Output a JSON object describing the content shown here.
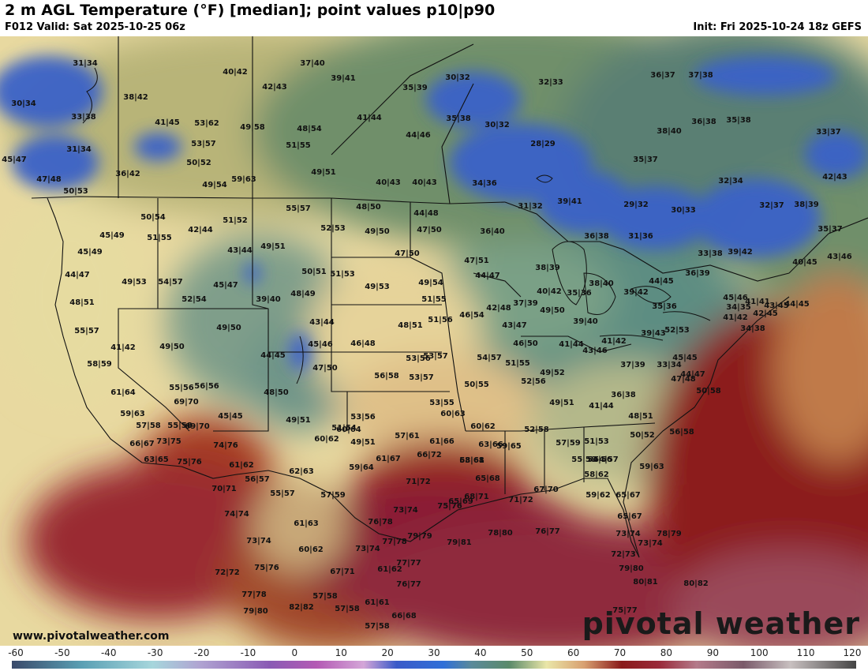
{
  "header": {
    "title": "2 m AGL Temperature (°F) [median]; point values p10|p90",
    "valid": "F012 Valid: Sat 2025-10-25 06z",
    "init": "Init: Fri 2025-10-24 18z GEFS"
  },
  "watermark": {
    "site": "www.pivotalweather.com",
    "brand": "pivotal weather"
  },
  "colorbar": {
    "ticks": [
      "-60",
      "-50",
      "-40",
      "-30",
      "-20",
      "-10",
      "0",
      "10",
      "20",
      "30",
      "40",
      "50",
      "60",
      "70",
      "80",
      "90",
      "100",
      "110",
      "120"
    ],
    "range": [
      -60,
      120
    ],
    "stops": [
      {
        "t": -60,
        "c": "#3a4a6a"
      },
      {
        "t": -45,
        "c": "#5aa0b4"
      },
      {
        "t": -30,
        "c": "#a6d6dc"
      },
      {
        "t": -20,
        "c": "#b0a4d2"
      },
      {
        "t": -5,
        "c": "#8a5ab4"
      },
      {
        "t": 5,
        "c": "#b45ab4"
      },
      {
        "t": 15,
        "c": "#d4a6d8"
      },
      {
        "t": 22,
        "c": "#3a5ac8"
      },
      {
        "t": 32,
        "c": "#2f6fd8"
      },
      {
        "t": 38,
        "c": "#5a8a9a"
      },
      {
        "t": 46,
        "c": "#5a8a6a"
      },
      {
        "t": 54,
        "c": "#eae6a8"
      },
      {
        "t": 62,
        "c": "#d8a070"
      },
      {
        "t": 70,
        "c": "#8a1a1a"
      },
      {
        "t": 78,
        "c": "#9a2a3a"
      },
      {
        "t": 86,
        "c": "#b47a8a"
      },
      {
        "t": 96,
        "c": "#7a5a6a"
      },
      {
        "t": 106,
        "c": "#c8c0c0"
      },
      {
        "t": 120,
        "c": "#444444"
      }
    ]
  },
  "point_values": [
    "31|34",
    "30|34",
    "33|38",
    "31|34",
    "45|47",
    "47|48",
    "50|53",
    "38|42",
    "41|45",
    "36|42",
    "53|62",
    "53|57",
    "50|52",
    "49|54",
    "49|58",
    "48|54",
    "51|55",
    "59|63",
    "40|42",
    "37|40",
    "42|43",
    "39|41",
    "35|39",
    "30|32",
    "41|44",
    "44|46",
    "35|38",
    "30|32",
    "28|29",
    "32|33",
    "36|37",
    "37|38",
    "38|40",
    "36|38",
    "35|38",
    "33|37",
    "35|37",
    "32|34",
    "42|43",
    "29|32",
    "30|33",
    "32|37",
    "38|39",
    "49|51",
    "40|43",
    "40|43",
    "34|36",
    "31|32",
    "39|41",
    "55|57",
    "48|50",
    "44|48",
    "52|53",
    "49|50",
    "47|50",
    "50|54",
    "51|55",
    "42|44",
    "51|52",
    "45|49",
    "45|49",
    "44|47",
    "49|53",
    "54|57",
    "43|44",
    "49|51",
    "45|47",
    "52|54",
    "48|51",
    "39|40",
    "48|49",
    "50|51",
    "51|53",
    "49|53",
    "47|50",
    "47|51",
    "44|47",
    "36|40",
    "36|38",
    "31|36",
    "35|37",
    "33|38",
    "39|42",
    "40|45",
    "43|46",
    "38|39",
    "40|42",
    "35|36",
    "38|40",
    "39|42",
    "44|45",
    "36|39",
    "45|46",
    "41|41",
    "42|45",
    "34|38",
    "34|35",
    "35|36",
    "52|53",
    "41|42",
    "43|45",
    "44|45",
    "49|54",
    "51|55",
    "46|54",
    "42|48",
    "37|39",
    "49|50",
    "39|40",
    "43|47",
    "55|57",
    "41|42",
    "49|50",
    "48|51",
    "51|56",
    "46|50",
    "41|44",
    "41|42",
    "39|43",
    "58|59",
    "49|50",
    "43|44",
    "45|46",
    "46|48",
    "53|56",
    "53|57",
    "54|57",
    "51|55",
    "43|46",
    "37|39",
    "33|34",
    "47|48",
    "44|45",
    "47|50",
    "56|58",
    "53|57",
    "49|52",
    "45|45",
    "44|47",
    "55|56",
    "61|64",
    "56|56",
    "48|50",
    "50|55",
    "52|56",
    "36|38",
    "50|58",
    "59|63",
    "69|70",
    "55|58",
    "60|62",
    "49|51",
    "41|44",
    "57|58",
    "66|67",
    "69|70",
    "45|45",
    "49|51",
    "53|56",
    "53|55",
    "60|63",
    "48|51",
    "56|58",
    "73|75",
    "74|76",
    "51|54",
    "60|64",
    "49|51",
    "52|58",
    "57|59",
    "51|53",
    "50|52",
    "63|65",
    "75|76",
    "61|62",
    "60|62",
    "57|61",
    "61|66",
    "59|65",
    "63|66",
    "54|57",
    "58|61",
    "54|56",
    "56|57",
    "62|63",
    "61|67",
    "66|72",
    "63|68",
    "55|58",
    "59|63",
    "70|71",
    "55|57",
    "59|64",
    "71|72",
    "65|69",
    "65|68",
    "58|62",
    "67|70",
    "59|62",
    "65|67",
    "57|59",
    "73|74",
    "75|76",
    "68|71",
    "71|72",
    "74|74",
    "61|63",
    "76|78",
    "65|67",
    "78|80",
    "76|77",
    "73|74",
    "73|74",
    "77|78",
    "79|79",
    "79|81",
    "60|62",
    "73|74",
    "72|73",
    "73|74",
    "78|79",
    "75|76",
    "67|71",
    "61|62",
    "77|77",
    "79|80",
    "76|77",
    "80|81",
    "72|72",
    "80|82",
    "77|78",
    "57|58",
    "61|61",
    "79|80",
    "82|82",
    "57|58",
    "66|68",
    "75|77",
    "57|58"
  ]
}
